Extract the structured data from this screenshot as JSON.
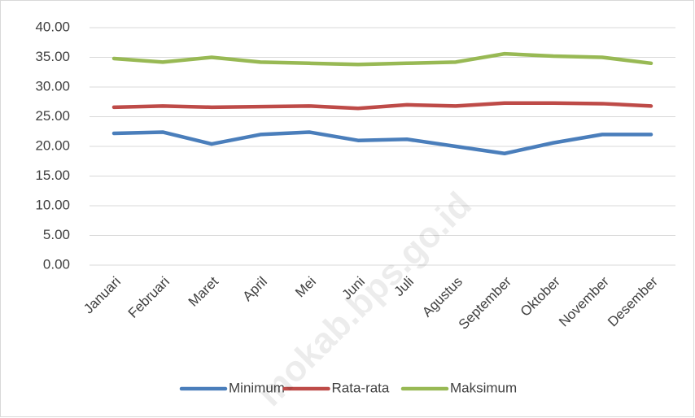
{
  "chart_data": {
    "type": "line",
    "categories": [
      "Januari",
      "Februari",
      "Maret",
      "April",
      "Mei",
      "Juni",
      "Juli",
      "Agustus",
      "September",
      "Oktober",
      "November",
      "Desember"
    ],
    "series": [
      {
        "name": "Minimum",
        "color": "#4a7ebb",
        "values": [
          22.2,
          22.4,
          20.4,
          22.0,
          22.4,
          21.0,
          21.2,
          20.0,
          18.8,
          20.6,
          22.0,
          22.0
        ]
      },
      {
        "name": "Rata-rata",
        "color": "#be4b48",
        "values": [
          26.6,
          26.8,
          26.6,
          26.7,
          26.8,
          26.4,
          27.0,
          26.8,
          27.3,
          27.3,
          27.2,
          26.8
        ]
      },
      {
        "name": "Maksimum",
        "color": "#98b954",
        "values": [
          34.8,
          34.2,
          35.0,
          34.2,
          34.0,
          33.8,
          34.0,
          34.2,
          35.6,
          35.2,
          35.0,
          34.0
        ]
      }
    ],
    "ylim": [
      0,
      40
    ],
    "yticks": [
      {
        "value": 0,
        "label": "0.00"
      },
      {
        "value": 5,
        "label": "5.00"
      },
      {
        "value": 10,
        "label": "10.00"
      },
      {
        "value": 15,
        "label": "15.00"
      },
      {
        "value": 20,
        "label": "20.00"
      },
      {
        "value": 25,
        "label": "25.00"
      },
      {
        "value": 30,
        "label": "30.00"
      },
      {
        "value": 35,
        "label": "35.00"
      },
      {
        "value": 40,
        "label": "40.00"
      }
    ],
    "grid": true,
    "legend": "bottom",
    "watermark": "mokab.bps.go.id"
  }
}
